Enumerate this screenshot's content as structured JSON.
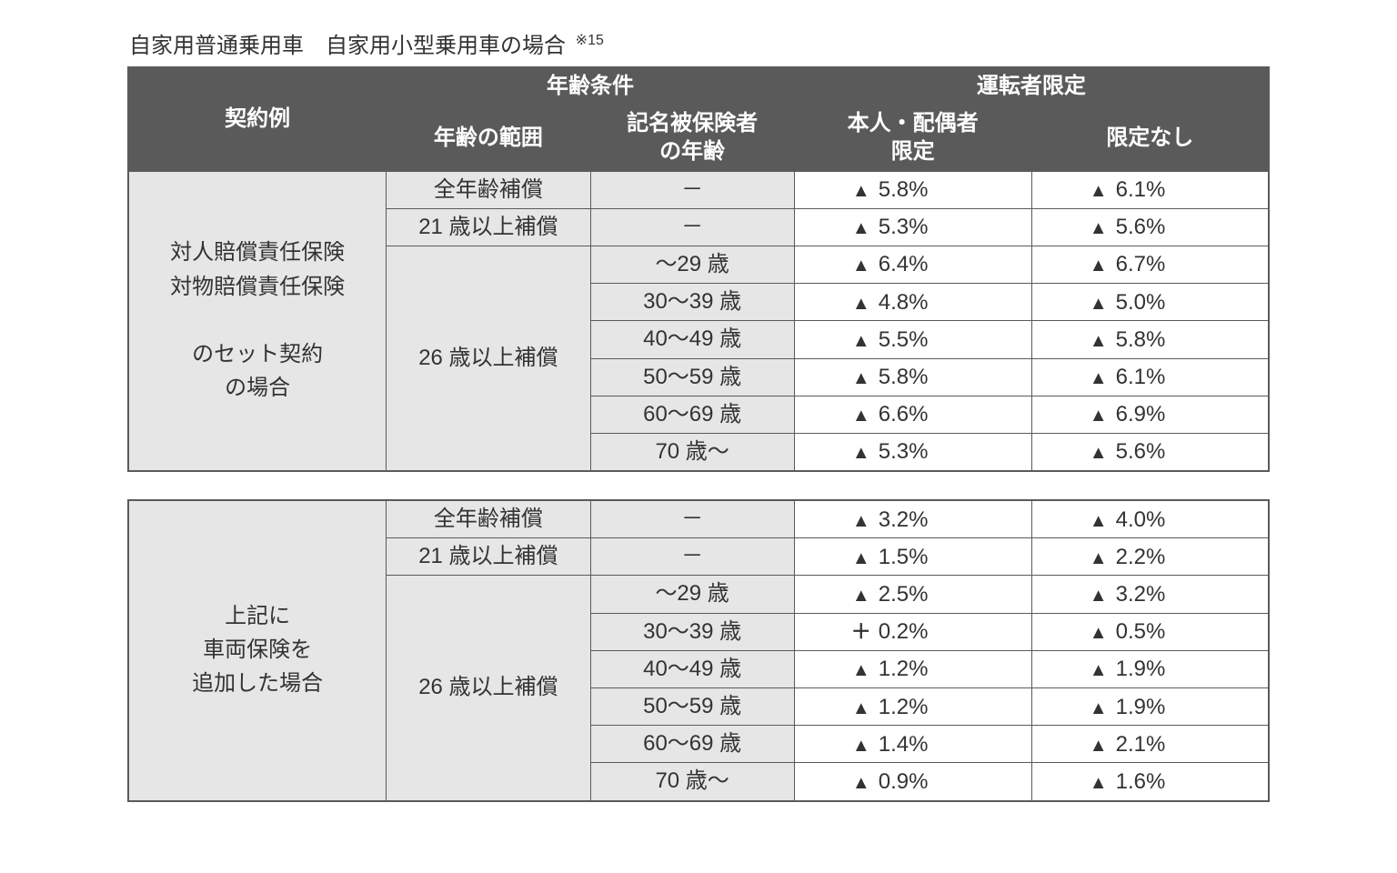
{
  "heading_prefix": "自家用普通乗用車　自家用小型乗用車の場合",
  "heading_note": "※15",
  "header": {
    "contract": "契約例",
    "age_cond": "年齢条件",
    "driver_limit": "運転者限定",
    "age_range": "年齢の範囲",
    "named_age_l1": "記名被保険者",
    "named_age_l2": "の年齢",
    "spouse_l1": "本人・配偶者",
    "spouse_l2": "限定",
    "no_limit": "限定なし"
  },
  "age_ranges": {
    "all": "全年齢補償",
    "o21": "21 歳以上補償",
    "o26": "26 歳以上補償"
  },
  "sub_ages": [
    "～29 歳",
    "30～39 歳",
    "40～49 歳",
    "50～59 歳",
    "60～69 歳",
    "70 歳～"
  ],
  "dash": "－",
  "table1": {
    "label_l1": "対人賠償責任保険",
    "label_l2": "対物賠償責任保険",
    "label_l3": "",
    "label_l4": "のセット契約",
    "label_l5": "の場合",
    "rows": [
      {
        "spouse": "5.8%",
        "nolimit": "6.1%",
        "s_sym": "tri",
        "n_sym": "tri"
      },
      {
        "spouse": "5.3%",
        "nolimit": "5.6%",
        "s_sym": "tri",
        "n_sym": "tri"
      },
      {
        "spouse": "6.4%",
        "nolimit": "6.7%",
        "s_sym": "tri",
        "n_sym": "tri"
      },
      {
        "spouse": "4.8%",
        "nolimit": "5.0%",
        "s_sym": "tri",
        "n_sym": "tri"
      },
      {
        "spouse": "5.5%",
        "nolimit": "5.8%",
        "s_sym": "tri",
        "n_sym": "tri"
      },
      {
        "spouse": "5.8%",
        "nolimit": "6.1%",
        "s_sym": "tri",
        "n_sym": "tri"
      },
      {
        "spouse": "6.6%",
        "nolimit": "6.9%",
        "s_sym": "tri",
        "n_sym": "tri"
      },
      {
        "spouse": "5.3%",
        "nolimit": "5.6%",
        "s_sym": "tri",
        "n_sym": "tri"
      }
    ]
  },
  "table2": {
    "label_l1": "上記に",
    "label_l2": "車両保険を",
    "label_l3": "追加した場合",
    "rows": [
      {
        "spouse": "3.2%",
        "nolimit": "4.0%",
        "s_sym": "tri",
        "n_sym": "tri"
      },
      {
        "spouse": "1.5%",
        "nolimit": "2.2%",
        "s_sym": "tri",
        "n_sym": "tri"
      },
      {
        "spouse": "2.5%",
        "nolimit": "3.2%",
        "s_sym": "tri",
        "n_sym": "tri"
      },
      {
        "spouse": "0.2%",
        "nolimit": "0.5%",
        "s_sym": "plus",
        "n_sym": "tri"
      },
      {
        "spouse": "1.2%",
        "nolimit": "1.9%",
        "s_sym": "tri",
        "n_sym": "tri"
      },
      {
        "spouse": "1.2%",
        "nolimit": "1.9%",
        "s_sym": "tri",
        "n_sym": "tri"
      },
      {
        "spouse": "1.4%",
        "nolimit": "2.1%",
        "s_sym": "tri",
        "n_sym": "tri"
      },
      {
        "spouse": "0.9%",
        "nolimit": "1.6%",
        "s_sym": "tri",
        "n_sym": "tri"
      }
    ]
  },
  "col_widths": [
    "248px",
    "196px",
    "196px",
    "228px",
    "228px"
  ]
}
